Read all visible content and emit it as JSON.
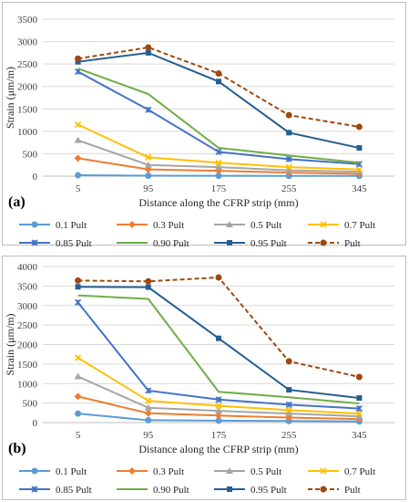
{
  "chart_data": [
    {
      "panel_label": "(a)",
      "type": "line",
      "x": [
        5,
        95,
        175,
        255,
        345
      ],
      "xlabel": "Distance along the CFRP strip (mm)",
      "ylabel": "Strain (μm/m)",
      "ylim": [
        0,
        3500
      ],
      "yticks": [
        0,
        500,
        1000,
        1500,
        2000,
        2500,
        3000,
        3500
      ],
      "grid": true,
      "legend_position": "bottom",
      "series": [
        {
          "name": "0.1 Pult",
          "color": "#5b9bd5",
          "marker": "circle",
          "dash": false,
          "values": [
            20,
            10,
            8,
            5,
            5
          ]
        },
        {
          "name": "0.3 Pult",
          "color": "#ed7d31",
          "marker": "diamond",
          "dash": false,
          "values": [
            400,
            150,
            120,
            80,
            50
          ]
        },
        {
          "name": "0.5 Pult",
          "color": "#a5a5a5",
          "marker": "triangle",
          "dash": false,
          "values": [
            800,
            250,
            200,
            130,
            100
          ]
        },
        {
          "name": "0.7 Pult",
          "color": "#ffc000",
          "marker": "x",
          "dash": false,
          "values": [
            1150,
            420,
            300,
            200,
            150
          ]
        },
        {
          "name": "0.85 Pult",
          "color": "#4472c4",
          "marker": "star",
          "dash": false,
          "values": [
            2330,
            1480,
            540,
            380,
            270
          ]
        },
        {
          "name": "0.90 Pult",
          "color": "#70ad47",
          "marker": "none",
          "dash": false,
          "values": [
            2400,
            1830,
            630,
            460,
            300
          ]
        },
        {
          "name": "0.95 Pult",
          "color": "#255e91",
          "marker": "square",
          "dash": false,
          "values": [
            2550,
            2750,
            2110,
            970,
            630
          ]
        },
        {
          "name": "Pult",
          "color": "#9e480e",
          "marker": "circle",
          "dash": true,
          "values": [
            2620,
            2870,
            2290,
            1360,
            1100
          ]
        }
      ]
    },
    {
      "panel_label": "(b)",
      "type": "line",
      "x": [
        5,
        95,
        175,
        255,
        345
      ],
      "xlabel": "Distance along the CFRP strip (mm)",
      "ylabel": "Strain (μm/m)",
      "ylim": [
        0,
        4000
      ],
      "yticks": [
        0,
        500,
        1000,
        1500,
        2000,
        2500,
        3000,
        3500,
        4000
      ],
      "grid": true,
      "legend_position": "bottom",
      "series": [
        {
          "name": "0.1 Pult",
          "color": "#5b9bd5",
          "marker": "circle",
          "dash": false,
          "values": [
            230,
            60,
            50,
            40,
            30
          ]
        },
        {
          "name": "0.3 Pult",
          "color": "#ed7d31",
          "marker": "diamond",
          "dash": false,
          "values": [
            670,
            240,
            180,
            130,
            90
          ]
        },
        {
          "name": "0.5 Pult",
          "color": "#a5a5a5",
          "marker": "triangle",
          "dash": false,
          "values": [
            1180,
            380,
            300,
            230,
            160
          ]
        },
        {
          "name": "0.7 Pult",
          "color": "#ffc000",
          "marker": "x",
          "dash": false,
          "values": [
            1660,
            560,
            430,
            320,
            230
          ]
        },
        {
          "name": "0.85 Pult",
          "color": "#4472c4",
          "marker": "star",
          "dash": false,
          "values": [
            3080,
            820,
            590,
            460,
            360
          ]
        },
        {
          "name": "0.90 Pult",
          "color": "#70ad47",
          "marker": "none",
          "dash": false,
          "values": [
            3260,
            3170,
            790,
            650,
            490
          ]
        },
        {
          "name": "0.95 Pult",
          "color": "#255e91",
          "marker": "square",
          "dash": false,
          "values": [
            3480,
            3470,
            2160,
            840,
            630
          ]
        },
        {
          "name": "Pult",
          "color": "#9e480e",
          "marker": "circle",
          "dash": true,
          "values": [
            3640,
            3620,
            3720,
            1570,
            1170
          ]
        }
      ]
    }
  ]
}
